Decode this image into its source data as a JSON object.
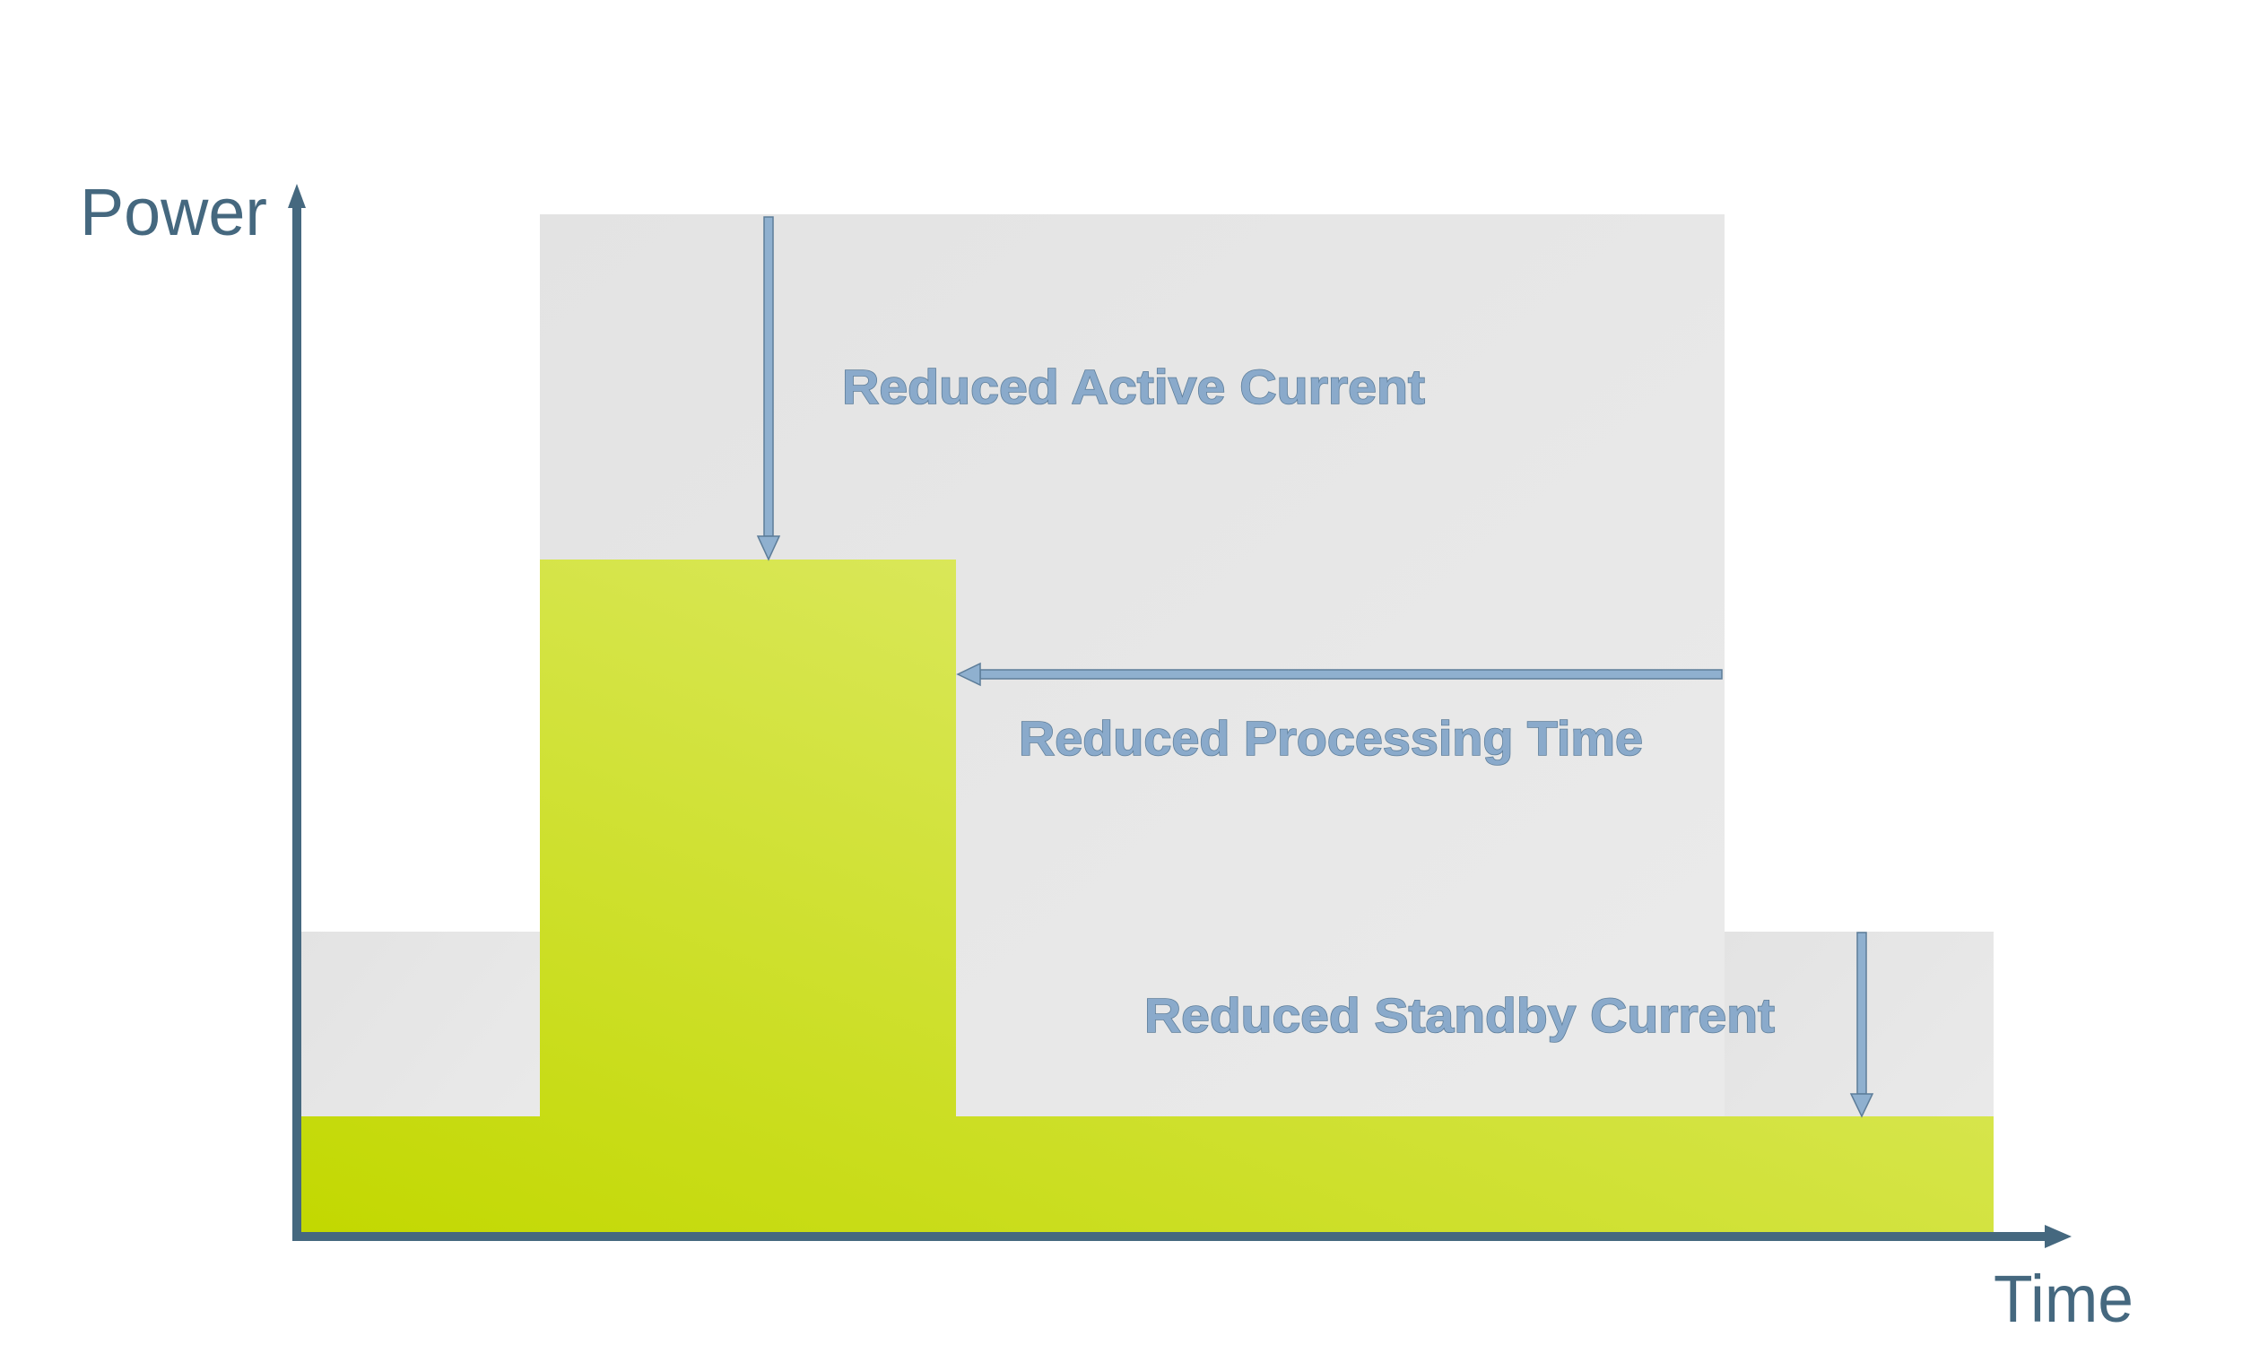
{
  "axes": {
    "y_label": "Power",
    "x_label": "Time"
  },
  "annotations": {
    "active": "Reduced Active Current",
    "processing": "Reduced Processing Time",
    "standby": "Reduced Standby Current"
  },
  "colors": {
    "axis": "#45687f",
    "arrow": "#8fb0cf",
    "annotation_text": "#8aaacb",
    "annotation_outline": "#5d7d99",
    "baseline_area": "#e6e6e6",
    "reduced_area_dark": "#c2d800",
    "reduced_area_light": "#e4ee80"
  }
}
